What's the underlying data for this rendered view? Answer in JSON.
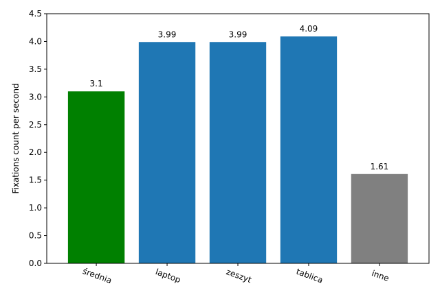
{
  "chart_data": {
    "type": "bar",
    "title": "",
    "xlabel": "",
    "ylabel": "Fixations count per second",
    "categories": [
      "średnia",
      "laptop",
      "zeszyt",
      "tablica",
      "inne"
    ],
    "values": [
      3.1,
      3.99,
      3.99,
      4.09,
      1.61
    ],
    "data_labels": [
      "3.1",
      "3.99",
      "3.99",
      "4.09",
      "1.61"
    ],
    "colors": [
      "#008000",
      "#1f77b4",
      "#1f77b4",
      "#1f77b4",
      "#808080"
    ],
    "ylim": [
      0,
      4.5
    ],
    "yticks": [
      0.0,
      0.5,
      1.0,
      1.5,
      2.0,
      2.5,
      3.0,
      3.5,
      4.0,
      4.5
    ],
    "ytick_labels": [
      "0.0",
      "0.5",
      "1.0",
      "1.5",
      "2.0",
      "2.5",
      "3.0",
      "3.5",
      "4.0",
      "4.5"
    ],
    "xtick_rotation_deg": -20,
    "grid": false,
    "legend": "none"
  }
}
